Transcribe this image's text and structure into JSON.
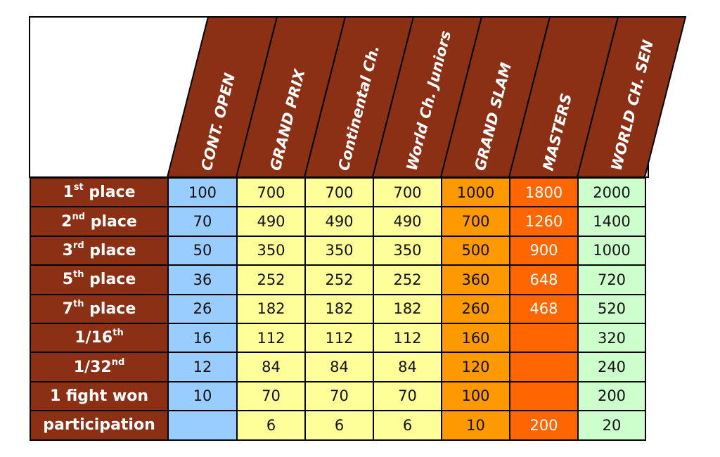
{
  "columns": [
    "CONT. OPEN",
    "GRAND PRIX",
    "Continental Ch.",
    "World Ch. Juniors",
    "GRAND SLAM",
    "MASTERS",
    "WORLD CH. SEN"
  ],
  "colors": {
    "header": "#8b3014",
    "cont_open": "#99ccff",
    "grand_prix": "#ffff99",
    "grand_slam": "#ff9900",
    "masters": "#ff6600",
    "world_ch_sen": "#ccffcc"
  },
  "rows": [
    {
      "base": "1",
      "sup": "st",
      "tail": " place",
      "values": [
        "100",
        "700",
        "700",
        "700",
        "1000",
        "1800",
        "2000"
      ]
    },
    {
      "base": "2",
      "sup": "nd",
      "tail": " place",
      "values": [
        "70",
        "490",
        "490",
        "490",
        "700",
        "1260",
        "1400"
      ]
    },
    {
      "base": "3",
      "sup": "rd",
      "tail": " place",
      "values": [
        "50",
        "350",
        "350",
        "350",
        "500",
        "900",
        "1000"
      ]
    },
    {
      "base": "5",
      "sup": "th",
      "tail": " place",
      "values": [
        "36",
        "252",
        "252",
        "252",
        "360",
        "648",
        "720"
      ]
    },
    {
      "base": "7",
      "sup": "th",
      "tail": " place",
      "values": [
        "26",
        "182",
        "182",
        "182",
        "260",
        "468",
        "520"
      ]
    },
    {
      "base": "1/16",
      "sup": "th",
      "tail": "",
      "values": [
        "16",
        "112",
        "112",
        "112",
        "160",
        "",
        "320"
      ]
    },
    {
      "base": "1/32",
      "sup": "nd",
      "tail": "",
      "values": [
        "12",
        "84",
        "84",
        "84",
        "120",
        "",
        "240"
      ]
    },
    {
      "base": "1 fight won",
      "sup": "",
      "tail": "",
      "values": [
        "10",
        "70",
        "70",
        "70",
        "100",
        "",
        "200"
      ]
    },
    {
      "base": "participation",
      "sup": "",
      "tail": "",
      "values": [
        "",
        "6",
        "6",
        "6",
        "10",
        "200",
        "20"
      ]
    }
  ]
}
